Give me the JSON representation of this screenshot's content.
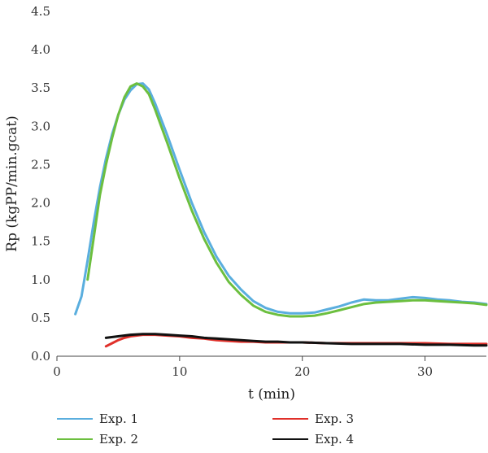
{
  "chart_data": {
    "type": "line",
    "xlabel": "t (min)",
    "ylabel": "Rp (kgPP/min.gcat)",
    "xlim": [
      0,
      35
    ],
    "ylim": [
      0,
      4.5
    ],
    "xticks": [
      0,
      10,
      20,
      30
    ],
    "yticks": [
      0.0,
      0.5,
      1.0,
      1.5,
      2.0,
      2.5,
      3.0,
      3.5,
      4.0,
      4.5
    ],
    "ytick_labels": [
      "0.0",
      "0.5",
      "1.0",
      "1.5",
      "2.0",
      "2.5",
      "3.0",
      "3.5",
      "4.0",
      "4.5"
    ],
    "xtick_labels": [
      "0",
      "10",
      "20",
      "30"
    ],
    "grid": false,
    "legend_position": "bottom",
    "series": [
      {
        "name": "Exp. 1",
        "color": "#5aaede",
        "points": [
          [
            1.5,
            0.55
          ],
          [
            2.0,
            0.78
          ],
          [
            2.5,
            1.25
          ],
          [
            3.0,
            1.75
          ],
          [
            3.5,
            2.2
          ],
          [
            4.0,
            2.58
          ],
          [
            4.5,
            2.9
          ],
          [
            5.0,
            3.15
          ],
          [
            5.5,
            3.35
          ],
          [
            6.0,
            3.47
          ],
          [
            6.5,
            3.55
          ],
          [
            7.0,
            3.56
          ],
          [
            7.5,
            3.48
          ],
          [
            8.0,
            3.3
          ],
          [
            9.0,
            2.88
          ],
          [
            10.0,
            2.43
          ],
          [
            11.0,
            2.0
          ],
          [
            12.0,
            1.62
          ],
          [
            13.0,
            1.3
          ],
          [
            14.0,
            1.05
          ],
          [
            15.0,
            0.87
          ],
          [
            16.0,
            0.72
          ],
          [
            17.0,
            0.63
          ],
          [
            18.0,
            0.58
          ],
          [
            19.0,
            0.56
          ],
          [
            20.0,
            0.56
          ],
          [
            21.0,
            0.57
          ],
          [
            22.0,
            0.61
          ],
          [
            23.0,
            0.65
          ],
          [
            24.0,
            0.7
          ],
          [
            25.0,
            0.74
          ],
          [
            26.0,
            0.73
          ],
          [
            27.0,
            0.73
          ],
          [
            28.0,
            0.75
          ],
          [
            29.0,
            0.77
          ],
          [
            30.0,
            0.76
          ],
          [
            31.0,
            0.74
          ],
          [
            32.0,
            0.73
          ],
          [
            33.0,
            0.71
          ],
          [
            34.0,
            0.7
          ],
          [
            35.0,
            0.68
          ]
        ]
      },
      {
        "name": "Exp. 2",
        "color": "#6cbf3f",
        "points": [
          [
            2.5,
            1.0
          ],
          [
            3.0,
            1.55
          ],
          [
            3.5,
            2.1
          ],
          [
            4.0,
            2.5
          ],
          [
            4.5,
            2.85
          ],
          [
            5.0,
            3.15
          ],
          [
            5.5,
            3.38
          ],
          [
            6.0,
            3.52
          ],
          [
            6.5,
            3.56
          ],
          [
            7.0,
            3.52
          ],
          [
            7.5,
            3.42
          ],
          [
            8.0,
            3.22
          ],
          [
            9.0,
            2.78
          ],
          [
            10.0,
            2.32
          ],
          [
            11.0,
            1.9
          ],
          [
            12.0,
            1.53
          ],
          [
            13.0,
            1.22
          ],
          [
            14.0,
            0.97
          ],
          [
            15.0,
            0.8
          ],
          [
            16.0,
            0.66
          ],
          [
            17.0,
            0.58
          ],
          [
            18.0,
            0.54
          ],
          [
            19.0,
            0.52
          ],
          [
            20.0,
            0.52
          ],
          [
            21.0,
            0.53
          ],
          [
            22.0,
            0.56
          ],
          [
            23.0,
            0.6
          ],
          [
            24.0,
            0.64
          ],
          [
            25.0,
            0.68
          ],
          [
            26.0,
            0.7
          ],
          [
            27.0,
            0.71
          ],
          [
            28.0,
            0.72
          ],
          [
            29.0,
            0.73
          ],
          [
            30.0,
            0.73
          ],
          [
            31.0,
            0.72
          ],
          [
            32.0,
            0.71
          ],
          [
            33.0,
            0.7
          ],
          [
            34.0,
            0.69
          ],
          [
            35.0,
            0.67
          ]
        ]
      },
      {
        "name": "Exp. 3",
        "color": "#e0302a",
        "points": [
          [
            4.0,
            0.13
          ],
          [
            4.5,
            0.17
          ],
          [
            5.0,
            0.21
          ],
          [
            5.5,
            0.24
          ],
          [
            6.0,
            0.26
          ],
          [
            7.0,
            0.28
          ],
          [
            8.0,
            0.28
          ],
          [
            9.0,
            0.27
          ],
          [
            10.0,
            0.26
          ],
          [
            11.0,
            0.24
          ],
          [
            12.0,
            0.23
          ],
          [
            13.0,
            0.21
          ],
          [
            14.0,
            0.2
          ],
          [
            15.0,
            0.19
          ],
          [
            16.0,
            0.19
          ],
          [
            17.0,
            0.18
          ],
          [
            18.0,
            0.18
          ],
          [
            19.0,
            0.18
          ],
          [
            20.0,
            0.18
          ],
          [
            22.0,
            0.17
          ],
          [
            24.0,
            0.17
          ],
          [
            26.0,
            0.17
          ],
          [
            28.0,
            0.17
          ],
          [
            30.0,
            0.17
          ],
          [
            32.0,
            0.16
          ],
          [
            34.0,
            0.16
          ],
          [
            35.0,
            0.16
          ]
        ]
      },
      {
        "name": "Exp. 4",
        "color": "#111111",
        "points": [
          [
            4.0,
            0.24
          ],
          [
            5.0,
            0.26
          ],
          [
            6.0,
            0.28
          ],
          [
            7.0,
            0.29
          ],
          [
            8.0,
            0.29
          ],
          [
            9.0,
            0.28
          ],
          [
            10.0,
            0.27
          ],
          [
            11.0,
            0.26
          ],
          [
            12.0,
            0.24
          ],
          [
            13.0,
            0.23
          ],
          [
            14.0,
            0.22
          ],
          [
            15.0,
            0.21
          ],
          [
            16.0,
            0.2
          ],
          [
            17.0,
            0.19
          ],
          [
            18.0,
            0.19
          ],
          [
            19.0,
            0.18
          ],
          [
            20.0,
            0.18
          ],
          [
            22.0,
            0.17
          ],
          [
            24.0,
            0.16
          ],
          [
            26.0,
            0.16
          ],
          [
            28.0,
            0.16
          ],
          [
            30.0,
            0.15
          ],
          [
            32.0,
            0.15
          ],
          [
            34.0,
            0.14
          ],
          [
            35.0,
            0.14
          ]
        ]
      }
    ]
  }
}
